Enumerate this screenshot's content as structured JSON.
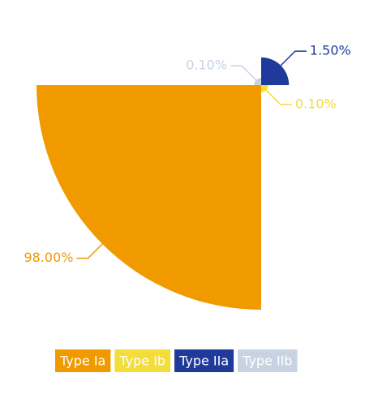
{
  "chart_data": {
    "type": "rose",
    "categories": [
      "Type Ia",
      "Type Ib",
      "Type IIa",
      "Type IIb"
    ],
    "values": [
      98,
      0.1,
      1.5,
      0.1
    ],
    "value_labels": [
      "98.00%",
      "0.10%",
      "1.50%",
      "0.10%"
    ],
    "colors": [
      "#f09a00",
      "#f3dd3a",
      "#1f3a9b",
      "#c8d3e2"
    ],
    "legend": "bottom"
  }
}
